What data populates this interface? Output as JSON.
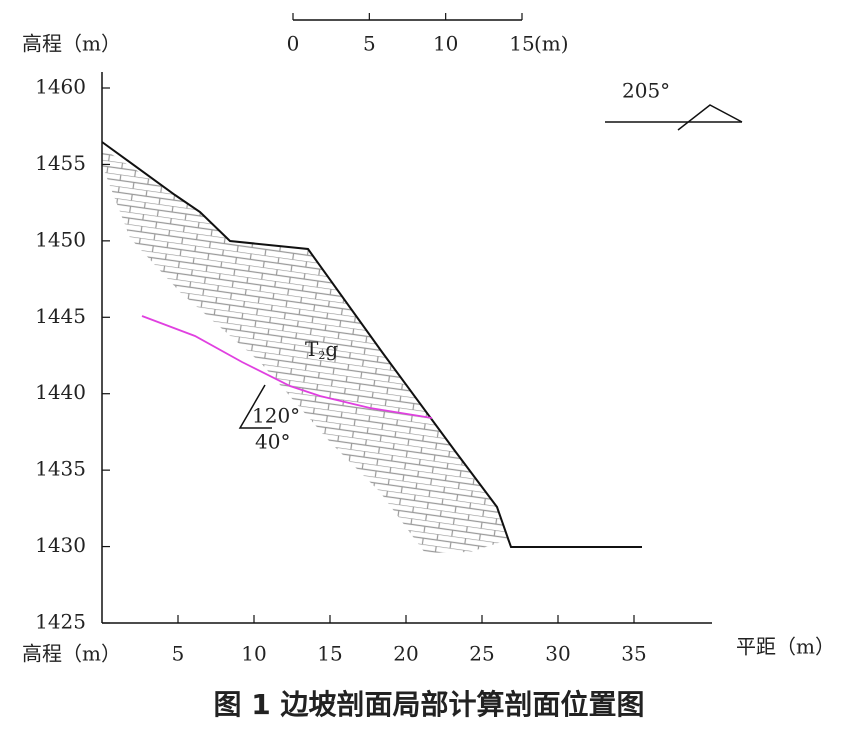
{
  "y_axis": {
    "label": "高程（m）",
    "ticks": [
      1460,
      1455,
      1450,
      1445,
      1440,
      1435,
      1430,
      1425
    ]
  },
  "x_axis": {
    "label": "平距（m）",
    "left_label": "高程（m）",
    "ticks": [
      5,
      10,
      15,
      20,
      25,
      30,
      35
    ]
  },
  "scale_bar": {
    "ticks": [
      0,
      5,
      10,
      15
    ],
    "unit": "(m)"
  },
  "strike": "205°",
  "formation": {
    "main": "T",
    "sub": "2",
    "suffix": "g"
  },
  "dip": {
    "direction": "120°",
    "angle": "40°"
  },
  "caption": "图 1  边坡剖面局部计算剖面位置图"
}
